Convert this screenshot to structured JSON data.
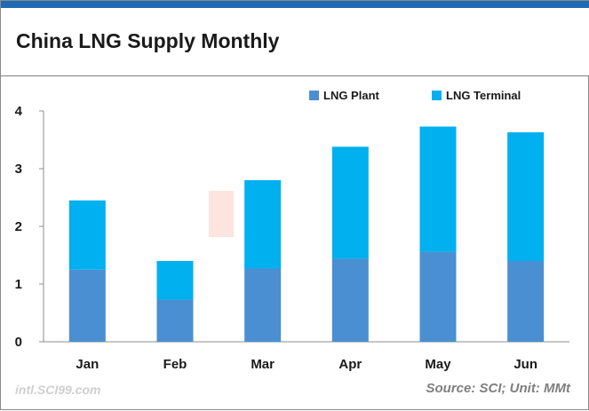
{
  "title": "China LNG Supply Monthly",
  "source": "Source: SCI; Unit: MMt",
  "watermark": "intl.SCI99.com",
  "colors": {
    "plant": "#4a8fd1",
    "terminal": "#00b0ef",
    "accent": "#1e6ab3"
  },
  "chart_data": {
    "type": "bar",
    "stacked": true,
    "title": "China LNG Supply Monthly",
    "categories": [
      "Jan",
      "Feb",
      "Mar",
      "Apr",
      "May",
      "Jun"
    ],
    "series": [
      {
        "name": "LNG Plant",
        "values": [
          1.25,
          0.73,
          1.27,
          1.44,
          1.56,
          1.4
        ]
      },
      {
        "name": "LNG Terminal",
        "values": [
          1.2,
          0.67,
          1.53,
          1.94,
          2.17,
          2.23
        ]
      }
    ],
    "ylim": [
      0,
      4
    ],
    "yticks": [
      0,
      1,
      2,
      3,
      4
    ],
    "grid": false,
    "legend": "top-right",
    "xlabel": "",
    "ylabel": ""
  }
}
